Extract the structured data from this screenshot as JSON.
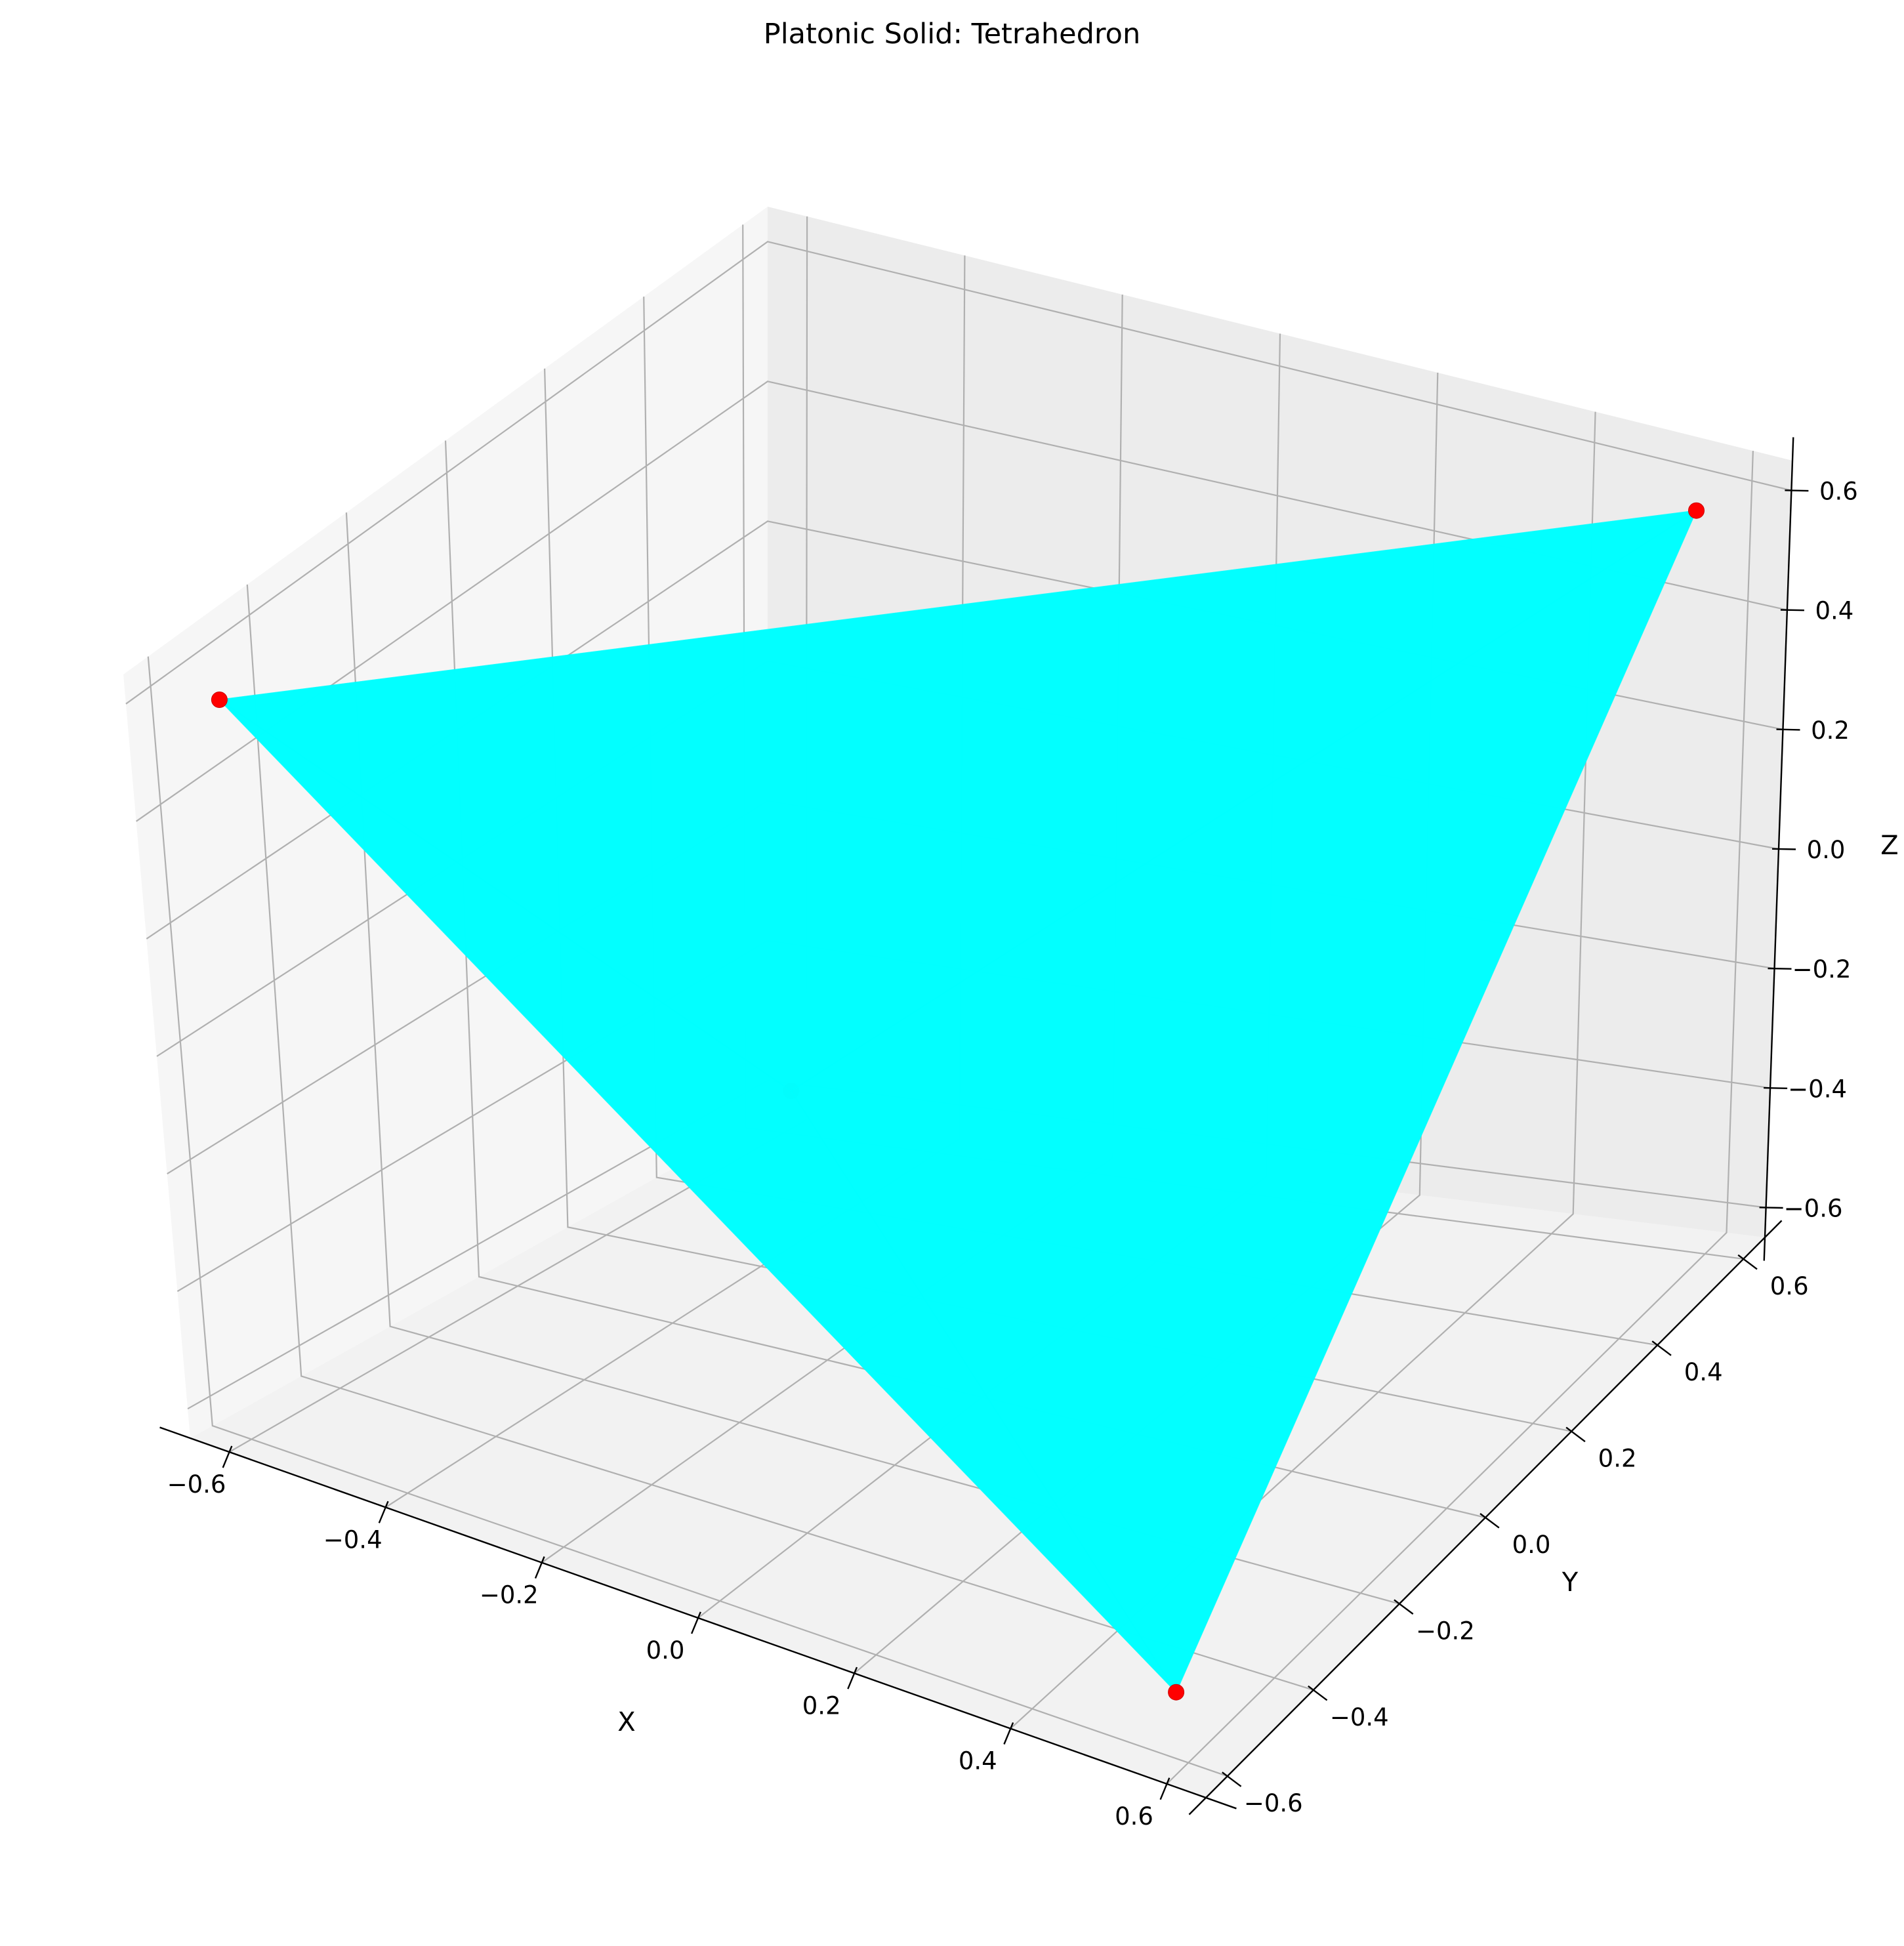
{
  "chart_data": {
    "type": "3d-scatter-polyhedron",
    "title": "Platonic Solid: Tetrahedron",
    "xlabel": "X",
    "ylabel": "Y",
    "zlabel": "Z",
    "xlim": [
      -0.65,
      0.65
    ],
    "ylim": [
      -0.65,
      0.65
    ],
    "zlim": [
      -0.65,
      0.65
    ],
    "ticks": [
      -0.6,
      -0.4,
      -0.2,
      0.0,
      0.2,
      0.4,
      0.6
    ],
    "tick_labels": [
      "−0.6",
      "−0.4",
      "−0.2",
      "0.0",
      "0.2",
      "0.4",
      "0.6"
    ],
    "grid": true,
    "vertices": [
      {
        "x": 0.577,
        "y": 0.577,
        "z": 0.577
      },
      {
        "x": 0.577,
        "y": -0.577,
        "z": -0.577
      },
      {
        "x": -0.577,
        "y": 0.577,
        "z": -0.577
      },
      {
        "x": -0.577,
        "y": -0.577,
        "z": 0.577
      }
    ],
    "faces": [
      [
        0,
        1,
        2
      ],
      [
        0,
        1,
        3
      ],
      [
        0,
        2,
        3
      ],
      [
        1,
        2,
        3
      ]
    ],
    "face_color": "#00ffff",
    "face_alpha": 0.9,
    "vertex_color": "#ff0000",
    "pane_colors": {
      "floor": "#f2f2f2",
      "left": "#f6f6f6",
      "back": "#ececec"
    },
    "grid_color": "#b0b0b0"
  }
}
